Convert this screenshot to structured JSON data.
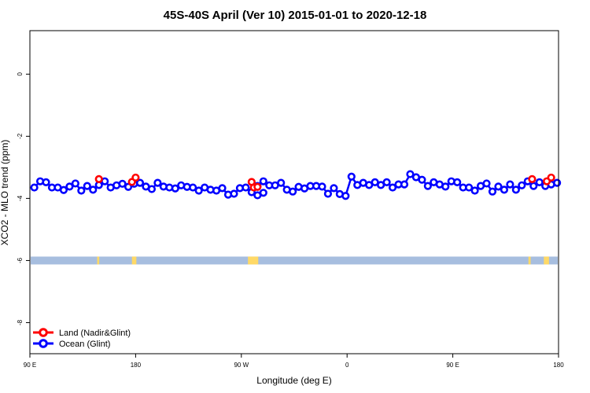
{
  "chart_data": {
    "type": "line",
    "title": "45S-40S April (Ver 10)   2015-01-01 to 2020-12-18",
    "xlabel": "Longitude (deg E)",
    "ylabel": "XCO2 - MLO trend (ppm)",
    "xlim": [
      90,
      450
    ],
    "ylim": [
      -9.0,
      1.4
    ],
    "x_ticks": [
      {
        "value": 90,
        "label": "90 E"
      },
      {
        "value": 162,
        "label": "180"
      },
      {
        "value": 234,
        "label": "90 W"
      },
      {
        "value": 306,
        "label": "0"
      },
      {
        "value": 378,
        "label": "90 E"
      },
      {
        "value": 450,
        "label": "180"
      }
    ],
    "y_ticks": [
      {
        "value": 0,
        "label": "0"
      },
      {
        "value": -2,
        "label": "-2"
      },
      {
        "value": -4,
        "label": "-4"
      },
      {
        "value": -6,
        "label": "-6"
      },
      {
        "value": -8,
        "label": "-8"
      }
    ],
    "grid": false,
    "legend_position": "bottom-left",
    "series": [
      {
        "name": "Land (Nadir&Glint)",
        "color": "#ff0000",
        "points": [
          [
            137,
            -3.38
          ],
          [
            159.5,
            -3.47
          ],
          [
            162,
            -3.33
          ],
          [
            241,
            -3.47
          ],
          [
            242.5,
            -3.65
          ],
          [
            245,
            -3.63
          ],
          [
            432,
            -3.38
          ],
          [
            442,
            -3.45
          ],
          [
            445,
            -3.33
          ]
        ]
      },
      {
        "name": "Ocean (Glint)",
        "color": "#0000ff",
        "segments": [
          [
            [
              93,
              -3.65
            ],
            [
              97,
              -3.45
            ],
            [
              101,
              -3.48
            ],
            [
              105,
              -3.65
            ],
            [
              109,
              -3.65
            ],
            [
              113,
              -3.73
            ],
            [
              117,
              -3.62
            ],
            [
              121,
              -3.52
            ],
            [
              125,
              -3.75
            ],
            [
              129,
              -3.6
            ],
            [
              133,
              -3.72
            ],
            [
              137,
              -3.57
            ],
            [
              141,
              -3.45
            ],
            [
              145,
              -3.65
            ],
            [
              149,
              -3.58
            ],
            [
              153,
              -3.53
            ],
            [
              157,
              -3.63
            ],
            [
              161,
              -3.53
            ],
            [
              165,
              -3.5
            ],
            [
              169,
              -3.62
            ],
            [
              173,
              -3.7
            ],
            [
              177,
              -3.5
            ],
            [
              181,
              -3.62
            ],
            [
              185,
              -3.65
            ],
            [
              189,
              -3.68
            ],
            [
              193,
              -3.58
            ],
            [
              197,
              -3.63
            ],
            [
              201,
              -3.65
            ],
            [
              205,
              -3.75
            ],
            [
              209,
              -3.65
            ],
            [
              213,
              -3.72
            ],
            [
              217,
              -3.75
            ],
            [
              221,
              -3.67
            ],
            [
              225,
              -3.88
            ],
            [
              229,
              -3.85
            ],
            [
              233,
              -3.67
            ],
            [
              237,
              -3.65
            ],
            [
              241,
              -3.8
            ],
            [
              245,
              -3.9
            ],
            [
              249,
              -3.82
            ]
          ],
          [
            [
              245,
              -3.6
            ],
            [
              249,
              -3.45
            ],
            [
              253,
              -3.58
            ],
            [
              257,
              -3.58
            ],
            [
              261,
              -3.5
            ],
            [
              265,
              -3.72
            ],
            [
              269,
              -3.78
            ],
            [
              273,
              -3.63
            ],
            [
              277,
              -3.68
            ],
            [
              281,
              -3.6
            ],
            [
              285,
              -3.6
            ],
            [
              289,
              -3.62
            ],
            [
              293,
              -3.85
            ],
            [
              297,
              -3.67
            ],
            [
              301,
              -3.86
            ],
            [
              305,
              -3.92
            ],
            [
              309,
              -3.3
            ],
            [
              313,
              -3.57
            ],
            [
              317,
              -3.5
            ],
            [
              321,
              -3.57
            ],
            [
              325,
              -3.48
            ],
            [
              329,
              -3.57
            ],
            [
              333,
              -3.48
            ],
            [
              337,
              -3.65
            ],
            [
              341,
              -3.55
            ],
            [
              345,
              -3.55
            ],
            [
              349,
              -3.22
            ],
            [
              353,
              -3.32
            ],
            [
              357,
              -3.4
            ],
            [
              361,
              -3.6
            ],
            [
              365,
              -3.48
            ],
            [
              369,
              -3.55
            ],
            [
              373,
              -3.62
            ],
            [
              377,
              -3.45
            ],
            [
              381,
              -3.48
            ],
            [
              385,
              -3.65
            ],
            [
              389,
              -3.65
            ],
            [
              393,
              -3.75
            ],
            [
              397,
              -3.6
            ],
            [
              401,
              -3.52
            ],
            [
              405,
              -3.78
            ],
            [
              409,
              -3.62
            ],
            [
              413,
              -3.72
            ],
            [
              417,
              -3.55
            ],
            [
              421,
              -3.72
            ],
            [
              425,
              -3.58
            ],
            [
              429,
              -3.45
            ],
            [
              433,
              -3.6
            ],
            [
              437,
              -3.48
            ],
            [
              441,
              -3.6
            ],
            [
              445,
              -3.55
            ],
            [
              449,
              -3.5
            ]
          ]
        ]
      }
    ],
    "surface_band": {
      "y_value": -6,
      "ocean_color": "#a7bedf",
      "land_color": "#ffd966",
      "land_segments": [
        [
          135.8,
          137.2
        ],
        [
          159.5,
          162.5
        ],
        [
          238.5,
          245.5
        ],
        [
          429.5,
          431
        ],
        [
          440,
          443.5
        ]
      ]
    }
  }
}
